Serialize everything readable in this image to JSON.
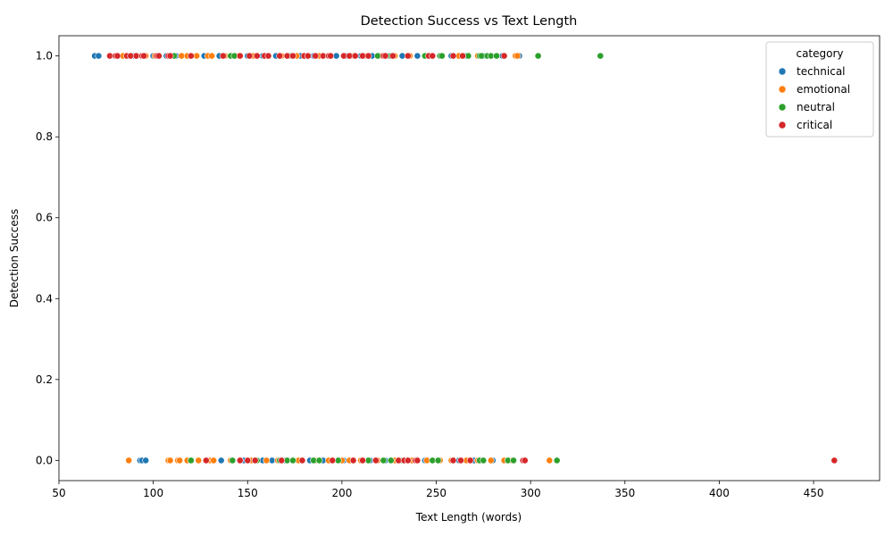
{
  "chart_data": {
    "type": "scatter",
    "title": "Detection Success vs Text Length",
    "xlabel": "Text Length (words)",
    "ylabel": "Detection Success",
    "xlim": [
      50,
      485
    ],
    "ylim": [
      -0.05,
      1.05
    ],
    "xticks": [
      50,
      100,
      150,
      200,
      250,
      300,
      350,
      400,
      450
    ],
    "yticks": [
      0.0,
      0.2,
      0.4,
      0.6,
      0.8,
      1.0
    ],
    "xtick_labels": [
      "50",
      "100",
      "150",
      "200",
      "250",
      "300",
      "350",
      "400",
      "450"
    ],
    "ytick_labels": [
      "0.0",
      "0.2",
      "0.4",
      "0.6",
      "0.8",
      "1.0"
    ],
    "grid": false,
    "legend_title": "category",
    "legend_position": "top-right",
    "series": [
      {
        "name": "technical",
        "color": "#1f77b4",
        "points": [
          [
            69,
            1
          ],
          [
            71,
            1
          ],
          [
            90,
            1
          ],
          [
            100,
            1
          ],
          [
            107,
            1
          ],
          [
            112,
            1
          ],
          [
            120,
            1
          ],
          [
            127,
            1
          ],
          [
            135,
            1
          ],
          [
            143,
            1
          ],
          [
            150,
            1
          ],
          [
            158,
            1
          ],
          [
            165,
            1
          ],
          [
            172,
            1
          ],
          [
            178,
            1
          ],
          [
            185,
            1
          ],
          [
            190,
            1
          ],
          [
            197,
            1
          ],
          [
            202,
            1
          ],
          [
            210,
            1
          ],
          [
            216,
            1
          ],
          [
            225,
            1
          ],
          [
            232,
            1
          ],
          [
            240,
            1
          ],
          [
            253,
            1
          ],
          [
            258,
            1
          ],
          [
            266,
            1
          ],
          [
            275,
            1
          ],
          [
            285,
            1
          ],
          [
            294,
            1
          ],
          [
            93,
            0
          ],
          [
            94,
            0
          ],
          [
            96,
            0
          ],
          [
            136,
            0
          ],
          [
            148,
            0
          ],
          [
            158,
            0
          ],
          [
            163,
            0
          ],
          [
            170,
            0
          ],
          [
            183,
            0
          ],
          [
            190,
            0
          ],
          [
            201,
            0
          ],
          [
            210,
            0
          ],
          [
            215,
            0
          ],
          [
            223,
            0
          ],
          [
            231,
            0
          ],
          [
            244,
            0
          ],
          [
            252,
            0
          ],
          [
            262,
            0
          ],
          [
            270,
            0
          ],
          [
            280,
            0
          ]
        ]
      },
      {
        "name": "emotional",
        "color": "#ff7f0e",
        "points": [
          [
            84,
            1
          ],
          [
            96,
            1
          ],
          [
            101,
            1
          ],
          [
            110,
            1
          ],
          [
            115,
            1
          ],
          [
            118,
            1
          ],
          [
            123,
            1
          ],
          [
            129,
            1
          ],
          [
            131,
            1
          ],
          [
            138,
            1
          ],
          [
            145,
            1
          ],
          [
            153,
            1
          ],
          [
            160,
            1
          ],
          [
            168,
            1
          ],
          [
            176,
            1
          ],
          [
            188,
            1
          ],
          [
            194,
            1
          ],
          [
            205,
            1
          ],
          [
            213,
            1
          ],
          [
            220,
            1
          ],
          [
            228,
            1
          ],
          [
            236,
            1
          ],
          [
            244,
            1
          ],
          [
            252,
            1
          ],
          [
            262,
            1
          ],
          [
            272,
            1
          ],
          [
            282,
            1
          ],
          [
            292,
            1
          ],
          [
            293,
            1
          ],
          [
            87,
            0
          ],
          [
            108,
            0
          ],
          [
            109,
            0
          ],
          [
            113,
            0
          ],
          [
            114,
            0
          ],
          [
            118,
            0
          ],
          [
            124,
            0
          ],
          [
            130,
            0
          ],
          [
            132,
            0
          ],
          [
            141,
            0
          ],
          [
            146,
            0
          ],
          [
            152,
            0
          ],
          [
            160,
            0
          ],
          [
            166,
            0
          ],
          [
            177,
            0
          ],
          [
            186,
            0
          ],
          [
            193,
            0
          ],
          [
            200,
            0
          ],
          [
            204,
            0
          ],
          [
            210,
            0
          ],
          [
            219,
            0
          ],
          [
            228,
            0
          ],
          [
            237,
            0
          ],
          [
            245,
            0
          ],
          [
            252,
            0
          ],
          [
            258,
            0
          ],
          [
            266,
            0
          ],
          [
            272,
            0
          ],
          [
            279,
            0
          ],
          [
            286,
            0
          ],
          [
            290,
            0
          ],
          [
            297,
            0
          ],
          [
            310,
            0
          ]
        ]
      },
      {
        "name": "neutral",
        "color": "#2ca02c",
        "points": [
          [
            111,
            1
          ],
          [
            141,
            1
          ],
          [
            143,
            1
          ],
          [
            173,
            1
          ],
          [
            182,
            1
          ],
          [
            219,
            1
          ],
          [
            226,
            1
          ],
          [
            244,
            1
          ],
          [
            252,
            1
          ],
          [
            253,
            1
          ],
          [
            267,
            1
          ],
          [
            273,
            1
          ],
          [
            274,
            1
          ],
          [
            277,
            1
          ],
          [
            279,
            1
          ],
          [
            282,
            1
          ],
          [
            304,
            1
          ],
          [
            337,
            1
          ],
          [
            120,
            0
          ],
          [
            142,
            0
          ],
          [
            155,
            0
          ],
          [
            167,
            0
          ],
          [
            171,
            0
          ],
          [
            174,
            0
          ],
          [
            185,
            0
          ],
          [
            188,
            0
          ],
          [
            198,
            0
          ],
          [
            214,
            0
          ],
          [
            222,
            0
          ],
          [
            226,
            0
          ],
          [
            232,
            0
          ],
          [
            248,
            0
          ],
          [
            251,
            0
          ],
          [
            273,
            0
          ],
          [
            275,
            0
          ],
          [
            288,
            0
          ],
          [
            291,
            0
          ],
          [
            314,
            0
          ]
        ]
      },
      {
        "name": "critical",
        "color": "#d62728",
        "points": [
          [
            77,
            1
          ],
          [
            80,
            1
          ],
          [
            81,
            1
          ],
          [
            86,
            1
          ],
          [
            88,
            1
          ],
          [
            91,
            1
          ],
          [
            94,
            1
          ],
          [
            95,
            1
          ],
          [
            102,
            1
          ],
          [
            103,
            1
          ],
          [
            108,
            1
          ],
          [
            109,
            1
          ],
          [
            120,
            1
          ],
          [
            137,
            1
          ],
          [
            146,
            1
          ],
          [
            151,
            1
          ],
          [
            155,
            1
          ],
          [
            159,
            1
          ],
          [
            161,
            1
          ],
          [
            167,
            1
          ],
          [
            171,
            1
          ],
          [
            174,
            1
          ],
          [
            180,
            1
          ],
          [
            182,
            1
          ],
          [
            186,
            1
          ],
          [
            190,
            1
          ],
          [
            193,
            1
          ],
          [
            194,
            1
          ],
          [
            201,
            1
          ],
          [
            204,
            1
          ],
          [
            207,
            1
          ],
          [
            211,
            1
          ],
          [
            214,
            1
          ],
          [
            222,
            1
          ],
          [
            223,
            1
          ],
          [
            227,
            1
          ],
          [
            235,
            1
          ],
          [
            246,
            1
          ],
          [
            248,
            1
          ],
          [
            259,
            1
          ],
          [
            264,
            1
          ],
          [
            286,
            1
          ],
          [
            128,
            0
          ],
          [
            146,
            0
          ],
          [
            150,
            0
          ],
          [
            154,
            0
          ],
          [
            168,
            0
          ],
          [
            179,
            0
          ],
          [
            195,
            0
          ],
          [
            206,
            0
          ],
          [
            211,
            0
          ],
          [
            218,
            0
          ],
          [
            230,
            0
          ],
          [
            233,
            0
          ],
          [
            235,
            0
          ],
          [
            239,
            0
          ],
          [
            240,
            0
          ],
          [
            259,
            0
          ],
          [
            263,
            0
          ],
          [
            268,
            0
          ],
          [
            296,
            0
          ],
          [
            297,
            0
          ],
          [
            461,
            0
          ]
        ]
      }
    ]
  }
}
